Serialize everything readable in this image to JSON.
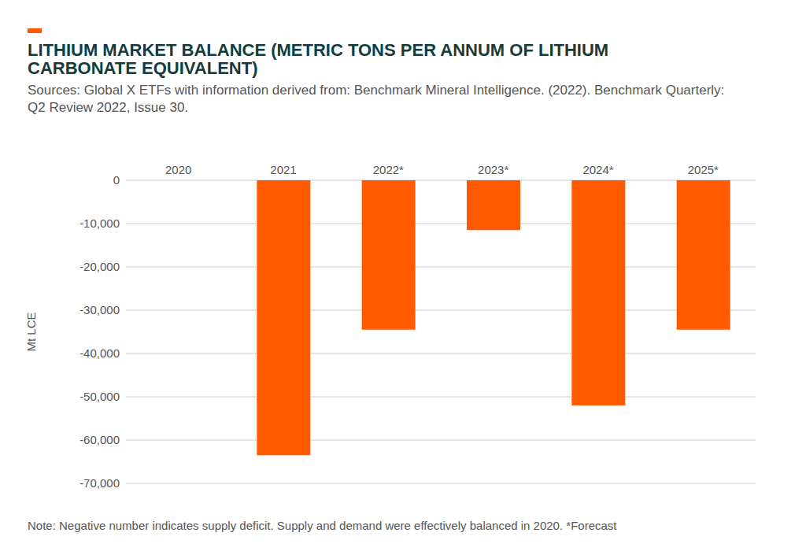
{
  "chart_data": {
    "type": "bar",
    "title": "LITHIUM MARKET BALANCE (METRIC TONS PER ANNUM OF LITHIUM CARBONATE EQUIVALENT)",
    "subtitle": "Sources: Global X ETFs with information derived from: Benchmark Mineral Intelligence. (2022). Benchmark Quarterly: Q2 Review 2022, Issue 30.",
    "note": "Note: Negative number indicates supply deficit. Supply and demand were effectively balanced in 2020. *Forecast",
    "y_label": "Mt LCE",
    "categories": [
      "2020",
      "2021",
      "2022*",
      "2023*",
      "2024*",
      "2025*"
    ],
    "values": [
      0,
      -63500,
      -34500,
      -11500,
      -52000,
      -34500
    ],
    "color": "#ff5a00",
    "ylim": [
      -70000,
      0
    ],
    "yticks": [
      0,
      {
        "value": -10000,
        "label": "-10,000"
      },
      {
        "value": -20000,
        "label": "-20,000"
      },
      {
        "value": -30000,
        "label": "-30,000"
      },
      {
        "value": -40000,
        "label": "-40,000"
      },
      {
        "value": -50000,
        "label": "-50,000"
      },
      {
        "value": -60000,
        "label": "-60,000"
      },
      {
        "value": -70000,
        "label": "-70,000"
      }
    ],
    "grid": true
  }
}
